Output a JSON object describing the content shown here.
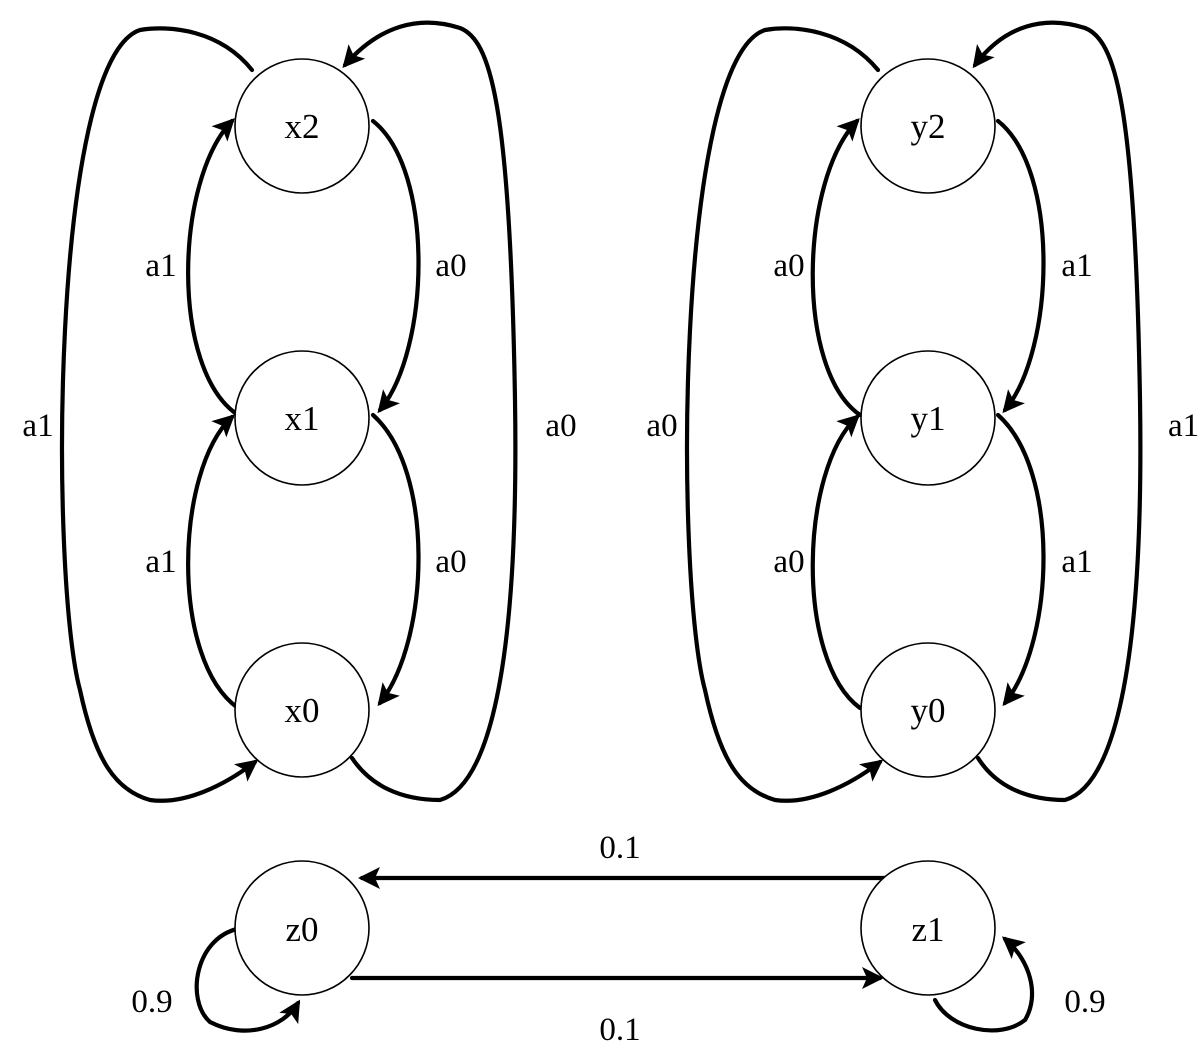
{
  "graph_x": {
    "nodes": {
      "x0": "x0",
      "x1": "x1",
      "x2": "x2"
    },
    "edges": {
      "x0_x1": "a1",
      "x1_x2": "a1",
      "x2_x1": "a0",
      "x1_x0": "a0",
      "x2_x0_outer": "a1",
      "x0_x2_outer": "a0"
    }
  },
  "graph_y": {
    "nodes": {
      "y0": "y0",
      "y1": "y1",
      "y2": "y2"
    },
    "edges": {
      "y0_y1": "a0",
      "y1_y2": "a0",
      "y2_y1": "a1",
      "y1_y0": "a1",
      "y2_y0_outer": "a0",
      "y0_y2_outer": "a1"
    }
  },
  "graph_z": {
    "nodes": {
      "z0": "z0",
      "z1": "z1"
    },
    "edges": {
      "z1_z0": "0.1",
      "z0_z1": "0.1",
      "z0_self": "0.9",
      "z1_self": "0.9"
    }
  }
}
